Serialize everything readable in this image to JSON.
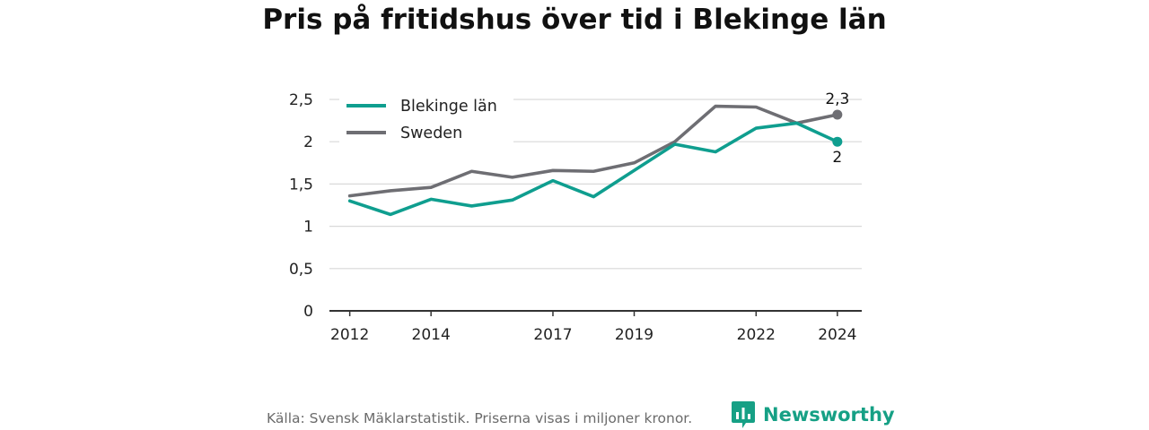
{
  "title": "Pris på fritidshus över tid i Blekinge län",
  "footer": {
    "source": "Källa: Svensk Mäklarstatistik. Priserna visas i miljoner kronor.",
    "brand": "Newsworthy"
  },
  "colors": {
    "blekinge": "#0f9e8f",
    "sweden": "#6e6e73",
    "grid": "#d9d9d9",
    "axis": "#333333",
    "brand": "#16a085"
  },
  "chart_data": {
    "type": "line",
    "x": [
      2012,
      2013,
      2014,
      2015,
      2016,
      2017,
      2018,
      2019,
      2020,
      2021,
      2022,
      2023,
      2024
    ],
    "xticks": [
      "2012",
      "2014",
      "2017",
      "2019",
      "2022",
      "2024"
    ],
    "yticks": [
      "0",
      "0,5",
      "1",
      "1,5",
      "2",
      "2,5"
    ],
    "ylim": [
      0,
      2.5
    ],
    "grid": true,
    "legend_position": "top-left",
    "series": [
      {
        "name": "Blekinge län",
        "color_key": "blekinge",
        "values": [
          1.3,
          1.14,
          1.32,
          1.24,
          1.31,
          1.54,
          1.35,
          1.66,
          1.97,
          1.88,
          2.16,
          2.22,
          2.0
        ],
        "end_label": "2"
      },
      {
        "name": "Sweden",
        "color_key": "sweden",
        "values": [
          1.36,
          1.42,
          1.46,
          1.65,
          1.58,
          1.66,
          1.65,
          1.75,
          2.0,
          2.42,
          2.41,
          2.22,
          2.32
        ],
        "end_label": "2,3"
      }
    ]
  }
}
